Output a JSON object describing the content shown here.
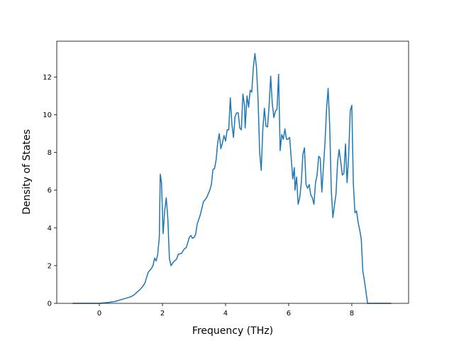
{
  "chart_data": {
    "type": "line",
    "x_label": "Frequency (THz)",
    "y_label": "Density of States",
    "xlim": [
      -1.35,
      9.8
    ],
    "ylim": [
      0,
      13.9
    ],
    "xticks": [
      0,
      2,
      4,
      6,
      8
    ],
    "yticks": [
      0,
      2,
      4,
      6,
      8,
      10,
      12
    ],
    "grid": false,
    "x": [
      -0.85,
      0,
      0.3,
      0.5,
      0.7,
      0.9,
      1.0,
      1.1,
      1.2,
      1.3,
      1.4,
      1.45,
      1.5,
      1.55,
      1.6,
      1.65,
      1.7,
      1.75,
      1.8,
      1.85,
      1.9,
      1.93,
      1.97,
      2.02,
      2.07,
      2.12,
      2.17,
      2.22,
      2.27,
      2.35,
      2.45,
      2.5,
      2.6,
      2.7,
      2.75,
      2.8,
      2.85,
      2.9,
      2.95,
      3.0,
      3.05,
      3.1,
      3.2,
      3.3,
      3.4,
      3.5,
      3.55,
      3.6,
      3.65,
      3.7,
      3.75,
      3.8,
      3.85,
      3.9,
      3.95,
      4.0,
      4.05,
      4.1,
      4.15,
      4.2,
      4.25,
      4.3,
      4.35,
      4.4,
      4.45,
      4.5,
      4.55,
      4.6,
      4.62,
      4.68,
      4.73,
      4.78,
      4.83,
      4.88,
      4.93,
      4.98,
      5.03,
      5.08,
      5.13,
      5.18,
      5.23,
      5.28,
      5.33,
      5.38,
      5.43,
      5.48,
      5.53,
      5.58,
      5.63,
      5.68,
      5.73,
      5.78,
      5.83,
      5.88,
      5.93,
      5.98,
      6.03,
      6.08,
      6.13,
      6.18,
      6.2,
      6.25,
      6.3,
      6.35,
      6.4,
      6.45,
      6.5,
      6.55,
      6.6,
      6.65,
      6.7,
      6.75,
      6.8,
      6.85,
      6.9,
      6.95,
      7.0,
      7.05,
      7.1,
      7.15,
      7.2,
      7.25,
      7.3,
      7.35,
      7.4,
      7.45,
      7.5,
      7.55,
      7.6,
      7.65,
      7.7,
      7.75,
      7.8,
      7.85,
      7.9,
      7.95,
      8.0,
      8.05,
      8.1,
      8.15,
      8.2,
      8.25,
      8.3,
      8.35,
      8.4,
      8.45,
      8.5,
      9.25
    ],
    "series": [
      {
        "color": "#1f77b4",
        "values": [
          0,
          0,
          0.05,
          0.1,
          0.2,
          0.3,
          0.35,
          0.45,
          0.6,
          0.75,
          0.95,
          1.1,
          1.4,
          1.65,
          1.75,
          1.85,
          2.0,
          2.4,
          2.25,
          2.6,
          3.5,
          6.85,
          6.4,
          3.7,
          4.9,
          5.6,
          4.5,
          2.4,
          2.0,
          2.2,
          2.35,
          2.6,
          2.65,
          2.9,
          2.95,
          3.2,
          3.5,
          3.6,
          3.45,
          3.5,
          3.65,
          4.2,
          4.7,
          5.4,
          5.6,
          6.0,
          6.3,
          7.1,
          7.15,
          7.6,
          8.5,
          9.0,
          8.2,
          8.5,
          8.9,
          8.6,
          9.2,
          9.2,
          10.9,
          9.5,
          8.8,
          9.9,
          10.1,
          10.1,
          9.3,
          9.2,
          11.1,
          10.5,
          9.3,
          11.0,
          10.4,
          11.3,
          11.2,
          12.5,
          13.25,
          12.5,
          10.8,
          8.0,
          7.05,
          9.2,
          10.35,
          9.4,
          9.35,
          10.5,
          12.05,
          10.6,
          9.85,
          10.2,
          10.3,
          12.15,
          8.1,
          8.95,
          8.7,
          9.25,
          8.7,
          8.7,
          8.8,
          7.7,
          6.6,
          7.2,
          6.0,
          6.7,
          5.25,
          5.6,
          6.4,
          7.9,
          8.25,
          6.3,
          6.1,
          6.3,
          5.75,
          5.6,
          5.25,
          6.4,
          6.8,
          7.8,
          7.7,
          5.9,
          7.2,
          8.5,
          10.3,
          11.4,
          9.4,
          6.0,
          4.55,
          5.2,
          5.8,
          7.5,
          8.15,
          7.5,
          6.8,
          6.9,
          8.45,
          6.4,
          7.8,
          10.2,
          10.5,
          6.3,
          4.8,
          4.9,
          4.3,
          3.9,
          3.4,
          1.7,
          1.2,
          0.6,
          0,
          0
        ]
      }
    ]
  }
}
